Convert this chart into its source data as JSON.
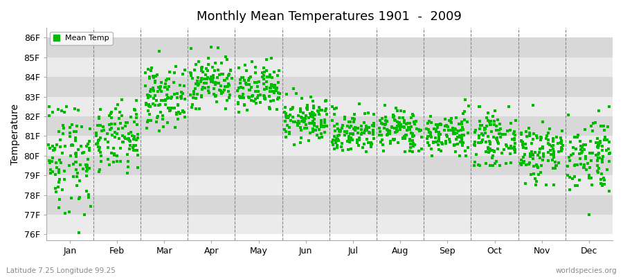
{
  "title": "Monthly Mean Temperatures 1901  -  2009",
  "ylabel": "Temperature",
  "footer_left": "Latitude 7.25 Longitude 99.25",
  "footer_right": "worldspecies.org",
  "legend_label": "Mean Temp",
  "marker_color": "#00bb00",
  "bg_color": "#ffffff",
  "stripe_light": "#ebebeb",
  "stripe_dark": "#d8d8d8",
  "ytick_labels": [
    "76F",
    "77F",
    "78F",
    "79F",
    "80F",
    "81F",
    "82F",
    "83F",
    "84F",
    "85F",
    "86F"
  ],
  "ytick_values": [
    76,
    77,
    78,
    79,
    80,
    81,
    82,
    83,
    84,
    85,
    86
  ],
  "ylim": [
    75.7,
    86.5
  ],
  "months": [
    "Jan",
    "Feb",
    "Mar",
    "Apr",
    "May",
    "Jun",
    "Jul",
    "Aug",
    "Sep",
    "Oct",
    "Nov",
    "Dec"
  ],
  "month_centers": [
    0.5,
    1.5,
    2.5,
    3.5,
    4.5,
    5.5,
    6.5,
    7.5,
    8.5,
    9.5,
    10.5,
    11.5
  ],
  "n_years": 109,
  "seed": 42,
  "monthly_mean": [
    80.0,
    80.8,
    83.0,
    83.8,
    83.3,
    81.8,
    81.2,
    81.3,
    81.1,
    80.8,
    80.2,
    80.1
  ],
  "monthly_std": [
    1.5,
    0.85,
    0.75,
    0.65,
    0.65,
    0.55,
    0.55,
    0.55,
    0.55,
    0.65,
    0.85,
    1.0
  ],
  "monthly_min": [
    76.0,
    78.5,
    81.2,
    82.4,
    82.0,
    80.5,
    80.2,
    80.2,
    80.0,
    79.5,
    78.5,
    77.0
  ],
  "monthly_max": [
    82.5,
    83.1,
    85.4,
    85.6,
    85.5,
    83.4,
    83.4,
    83.1,
    83.2,
    82.5,
    83.2,
    82.5
  ]
}
